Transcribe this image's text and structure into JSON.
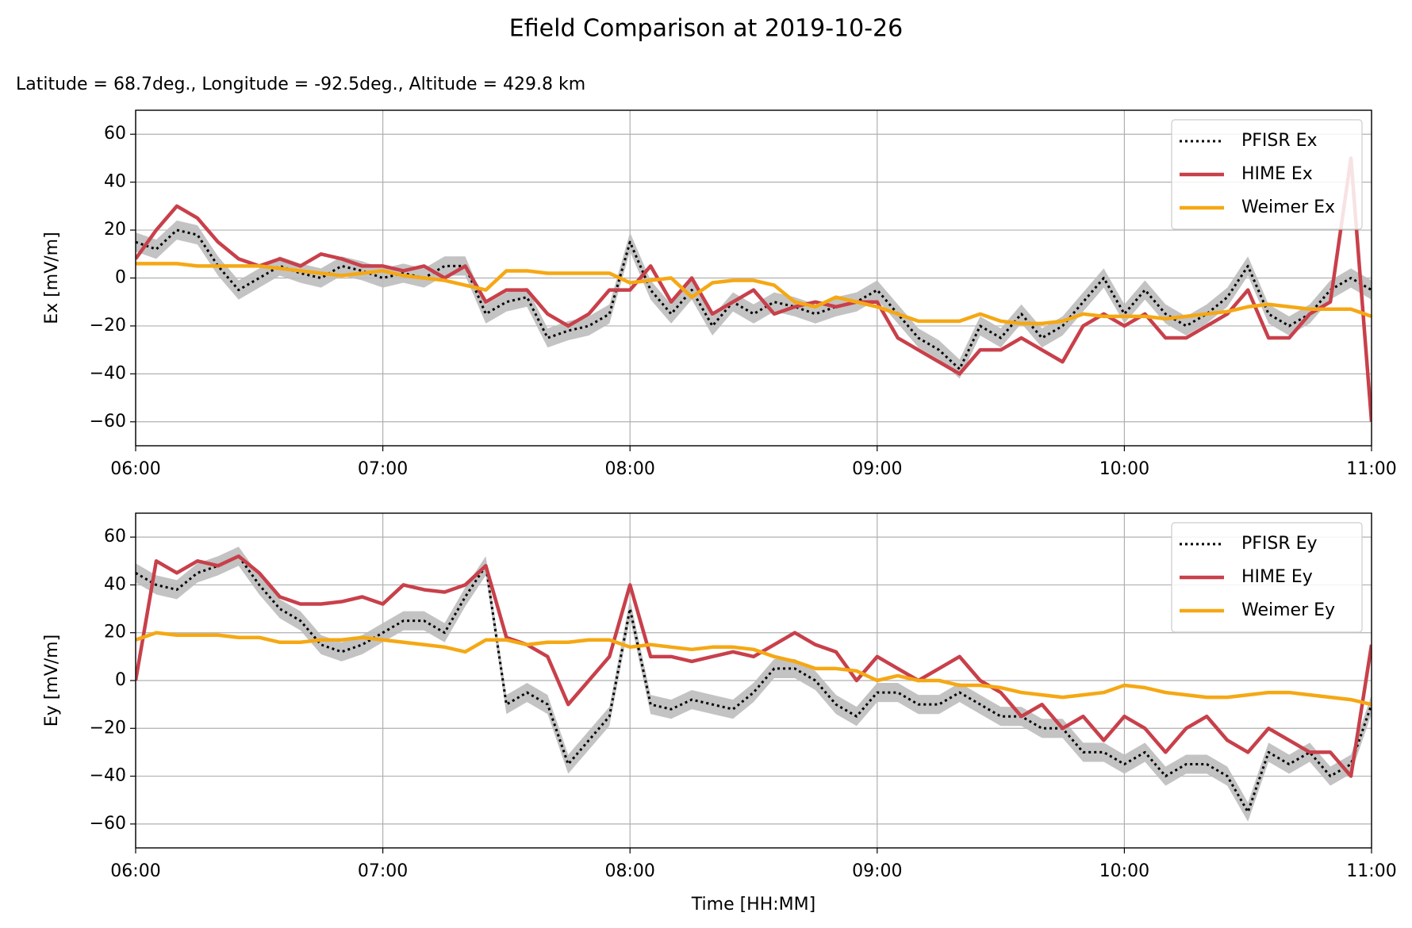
{
  "title": "Efield Comparison at 2019-10-26",
  "chart_data": [
    {
      "type": "line",
      "subtitle": "Latitude = 68.7deg., Longitude = -92.5deg., Altitude = 429.8 km",
      "ylabel": "Ex [mV/m]",
      "x": [
        "06:00",
        "06:05",
        "06:10",
        "06:15",
        "06:20",
        "06:25",
        "06:30",
        "06:35",
        "06:40",
        "06:45",
        "06:50",
        "06:55",
        "07:00",
        "07:05",
        "07:10",
        "07:15",
        "07:20",
        "07:25",
        "07:30",
        "07:35",
        "07:40",
        "07:45",
        "07:50",
        "07:55",
        "08:00",
        "08:05",
        "08:10",
        "08:15",
        "08:20",
        "08:25",
        "08:30",
        "08:35",
        "08:40",
        "08:45",
        "08:50",
        "08:55",
        "09:00",
        "09:05",
        "09:10",
        "09:15",
        "09:20",
        "09:25",
        "09:30",
        "09:35",
        "09:40",
        "09:45",
        "09:50",
        "09:55",
        "10:00",
        "10:05",
        "10:10",
        "10:15",
        "10:20",
        "10:25",
        "10:30",
        "10:35",
        "10:40",
        "10:45",
        "10:50",
        "10:55",
        "11:00"
      ],
      "xlim": [
        "06:00",
        "11:00"
      ],
      "xticks": [
        "06:00",
        "07:00",
        "08:00",
        "09:00",
        "10:00",
        "11:00"
      ],
      "ylim": [
        -70,
        70
      ],
      "yticks": [
        {
          "value": -60,
          "label": "−60"
        },
        {
          "value": -40,
          "label": "−40"
        },
        {
          "value": -20,
          "label": "−20"
        },
        0,
        20,
        40,
        60
      ],
      "grid": true,
      "legend": "upper right",
      "series": [
        {
          "name": "PFISR Ex",
          "color": "#000000",
          "linestyle": "dotted",
          "error": 4,
          "band_color": "#bdbdbd",
          "values": [
            15,
            12,
            20,
            18,
            5,
            -5,
            0,
            5,
            2,
            0,
            5,
            3,
            0,
            2,
            0,
            5,
            5,
            -15,
            -10,
            -8,
            -25,
            -22,
            -20,
            -15,
            15,
            -5,
            -15,
            -5,
            -20,
            -10,
            -15,
            -10,
            -12,
            -15,
            -12,
            -10,
            -5,
            -15,
            -25,
            -30,
            -38,
            -20,
            -25,
            -15,
            -25,
            -20,
            -10,
            0,
            -15,
            -5,
            -15,
            -20,
            -15,
            -8,
            5,
            -15,
            -20,
            -15,
            -5,
            0,
            -5
          ]
        },
        {
          "name": "HIME Ex",
          "color": "#c8404a",
          "linestyle": "solid",
          "values": [
            8,
            20,
            30,
            25,
            15,
            8,
            5,
            8,
            5,
            10,
            8,
            5,
            5,
            3,
            5,
            0,
            5,
            -10,
            -5,
            -5,
            -15,
            -20,
            -15,
            -5,
            -5,
            5,
            -10,
            0,
            -15,
            -10,
            -5,
            -15,
            -12,
            -10,
            -12,
            -10,
            -10,
            -25,
            -30,
            -35,
            -40,
            -30,
            -30,
            -25,
            -30,
            -35,
            -20,
            -15,
            -20,
            -15,
            -25,
            -25,
            -20,
            -15,
            -5,
            -25,
            -25,
            -15,
            -10,
            50,
            -60
          ]
        },
        {
          "name": "Weimer Ex",
          "color": "#f5a814",
          "linestyle": "solid",
          "values": [
            6,
            6,
            6,
            5,
            5,
            5,
            5,
            4,
            3,
            2,
            1,
            2,
            3,
            1,
            0,
            -1,
            -3,
            -5,
            3,
            3,
            2,
            2,
            2,
            2,
            -2,
            -1,
            0,
            -8,
            -2,
            -1,
            -1,
            -3,
            -10,
            -12,
            -8,
            -10,
            -12,
            -15,
            -18,
            -18,
            -18,
            -15,
            -18,
            -19,
            -19,
            -18,
            -15,
            -16,
            -16,
            -16,
            -17,
            -16,
            -15,
            -14,
            -12,
            -11,
            -12,
            -13,
            -13,
            -13,
            -16
          ]
        }
      ]
    },
    {
      "type": "line",
      "ylabel": "Ey [mV/m]",
      "xlabel": "Time [HH:MM]",
      "x": [
        "06:00",
        "06:05",
        "06:10",
        "06:15",
        "06:20",
        "06:25",
        "06:30",
        "06:35",
        "06:40",
        "06:45",
        "06:50",
        "06:55",
        "07:00",
        "07:05",
        "07:10",
        "07:15",
        "07:20",
        "07:25",
        "07:30",
        "07:35",
        "07:40",
        "07:45",
        "07:50",
        "07:55",
        "08:00",
        "08:05",
        "08:10",
        "08:15",
        "08:20",
        "08:25",
        "08:30",
        "08:35",
        "08:40",
        "08:45",
        "08:50",
        "08:55",
        "09:00",
        "09:05",
        "09:10",
        "09:15",
        "09:20",
        "09:25",
        "09:30",
        "09:35",
        "09:40",
        "09:45",
        "09:50",
        "09:55",
        "10:00",
        "10:05",
        "10:10",
        "10:15",
        "10:20",
        "10:25",
        "10:30",
        "10:35",
        "10:40",
        "10:45",
        "10:50",
        "10:55",
        "11:00"
      ],
      "xlim": [
        "06:00",
        "11:00"
      ],
      "xticks": [
        "06:00",
        "07:00",
        "08:00",
        "09:00",
        "10:00",
        "11:00"
      ],
      "ylim": [
        -70,
        70
      ],
      "yticks": [
        {
          "value": -60,
          "label": "−60"
        },
        {
          "value": -40,
          "label": "−40"
        },
        {
          "value": -20,
          "label": "−20"
        },
        0,
        20,
        40,
        60
      ],
      "grid": true,
      "legend": "upper right",
      "series": [
        {
          "name": "PFISR Ey",
          "color": "#000000",
          "linestyle": "dotted",
          "error": 4,
          "band_color": "#bdbdbd",
          "values": [
            45,
            40,
            38,
            45,
            48,
            52,
            40,
            30,
            25,
            15,
            12,
            15,
            20,
            25,
            25,
            20,
            35,
            48,
            -10,
            -5,
            -10,
            -35,
            -25,
            -15,
            30,
            -10,
            -12,
            -8,
            -10,
            -12,
            -5,
            5,
            5,
            0,
            -10,
            -15,
            -5,
            -5,
            -10,
            -10,
            -5,
            -10,
            -15,
            -15,
            -20,
            -20,
            -30,
            -30,
            -35,
            -30,
            -40,
            -35,
            -35,
            -40,
            -55,
            -30,
            -35,
            -30,
            -40,
            -35,
            -10
          ]
        },
        {
          "name": "HIME Ey",
          "color": "#c8404a",
          "linestyle": "solid",
          "values": [
            0,
            50,
            45,
            50,
            48,
            52,
            45,
            35,
            32,
            32,
            33,
            35,
            32,
            40,
            38,
            37,
            40,
            48,
            18,
            15,
            10,
            -10,
            0,
            10,
            40,
            10,
            10,
            8,
            10,
            12,
            10,
            15,
            20,
            15,
            12,
            0,
            10,
            5,
            0,
            5,
            10,
            0,
            -5,
            -15,
            -10,
            -20,
            -15,
            -25,
            -15,
            -20,
            -30,
            -20,
            -15,
            -25,
            -30,
            -20,
            -25,
            -30,
            -30,
            -40,
            15
          ]
        },
        {
          "name": "Weimer Ey",
          "color": "#f5a814",
          "linestyle": "solid",
          "values": [
            17,
            20,
            19,
            19,
            19,
            18,
            18,
            16,
            16,
            17,
            17,
            18,
            17,
            16,
            15,
            14,
            12,
            17,
            17,
            15,
            16,
            16,
            17,
            17,
            14,
            15,
            14,
            13,
            14,
            14,
            13,
            10,
            8,
            5,
            5,
            4,
            0,
            2,
            0,
            0,
            -2,
            -2,
            -3,
            -5,
            -6,
            -7,
            -6,
            -5,
            -2,
            -3,
            -5,
            -6,
            -7,
            -7,
            -6,
            -5,
            -5,
            -6,
            -7,
            -8,
            -10
          ]
        }
      ]
    }
  ]
}
